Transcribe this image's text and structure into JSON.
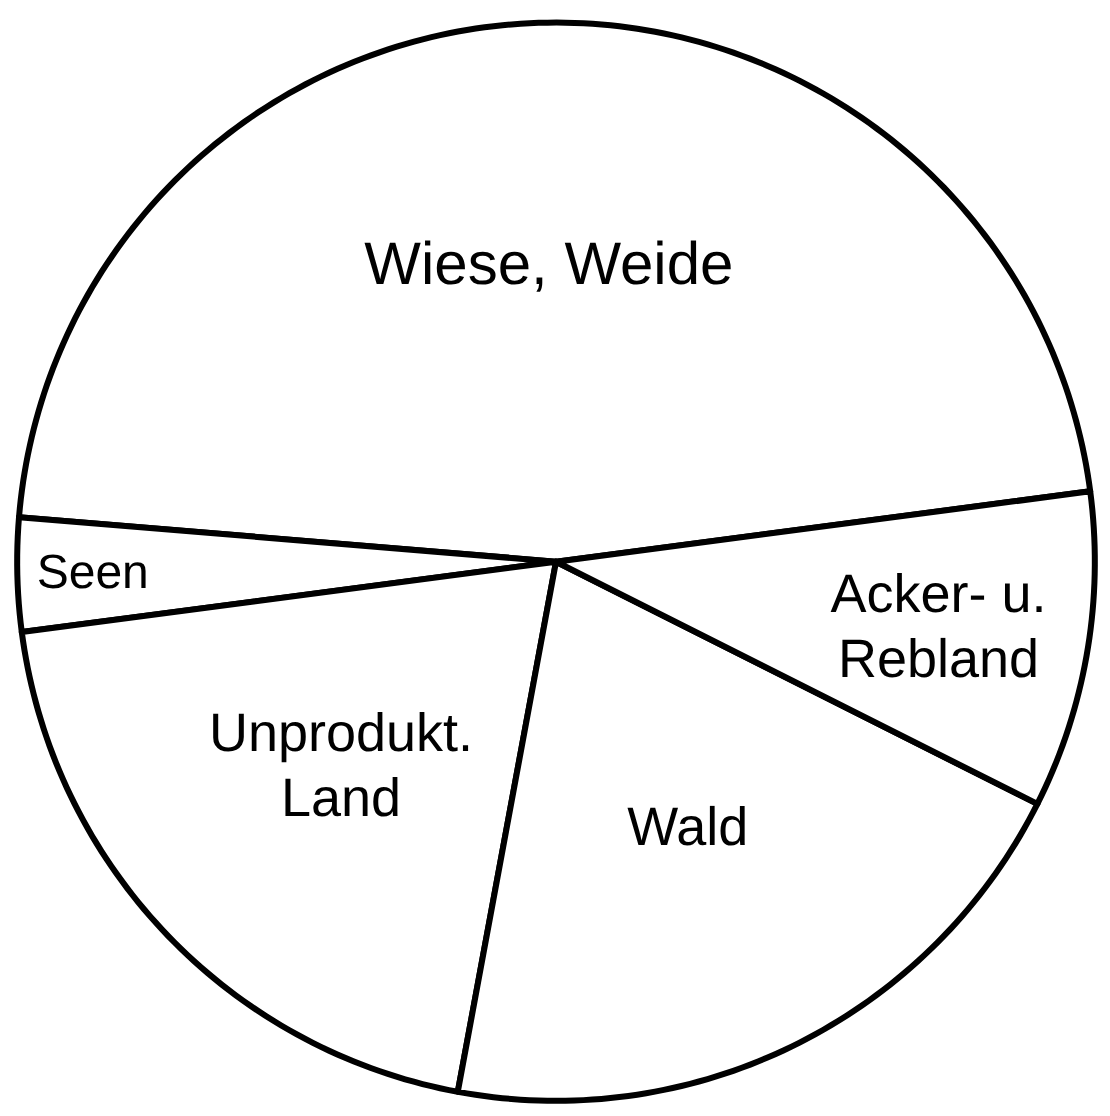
{
  "chart_data": {
    "type": "pie",
    "categories": [
      "Wiese, Weide",
      "Seen",
      "Unprodukt. Land",
      "Wald",
      "Acker- u. Rebland"
    ],
    "values": [
      46.6,
      3.4,
      20,
      20.5,
      9.5
    ],
    "colors": [
      "#ffffff",
      "#ffffff",
      "#ffffff",
      "#ffffff",
      "#ffffff"
    ]
  }
}
